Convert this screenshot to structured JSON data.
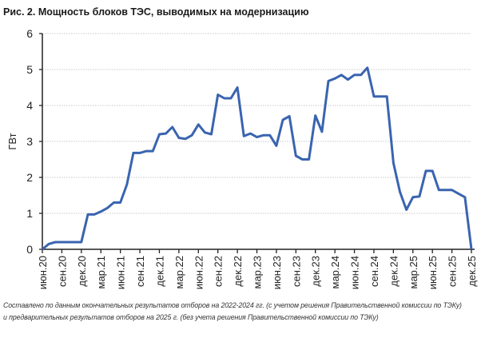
{
  "chart_data": {
    "type": "line",
    "title": "Рис. 2. Мощность блоков ТЭС, выводимых на модернизацию",
    "xlabel": "",
    "ylabel": "ГВт",
    "ylim": [
      0,
      6
    ],
    "yticks": [
      "0",
      "1",
      "2",
      "3",
      "4",
      "5",
      "6"
    ],
    "grid": true,
    "x_tick_labels": [
      "июн.20",
      "сен.20",
      "дек.20",
      "мар.21",
      "июн.21",
      "сен.21",
      "дек.21",
      "мар.22",
      "июн.22",
      "сен.22",
      "дек.22",
      "мар.23",
      "июн.23",
      "сен.23",
      "дек.23",
      "мар.24",
      "июн.24",
      "сен.24",
      "дек.24",
      "мар.25",
      "июн.25",
      "сен.25",
      "дек.25"
    ],
    "x_range": [
      "июн.20",
      "дек.25"
    ],
    "x_frequency": "monthly",
    "series": [
      {
        "color": "#3a64b0",
        "values": [
          0,
          0.15,
          0.2,
          0.2,
          0.2,
          0.2,
          0.2,
          0.97,
          0.97,
          1.05,
          1.15,
          1.3,
          1.3,
          1.8,
          2.68,
          2.68,
          2.73,
          2.73,
          3.2,
          3.22,
          3.4,
          3.1,
          3.07,
          3.17,
          3.47,
          3.25,
          3.2,
          4.3,
          4.2,
          4.2,
          4.5,
          3.15,
          3.22,
          3.12,
          3.17,
          3.17,
          2.88,
          3.6,
          3.7,
          2.6,
          2.5,
          2.5,
          3.72,
          3.27,
          4.68,
          4.75,
          4.85,
          4.72,
          4.85,
          4.85,
          5.05,
          4.25,
          4.25,
          4.25,
          2.4,
          1.6,
          1.1,
          1.45,
          1.47,
          2.18,
          2.18,
          1.65,
          1.65,
          1.65,
          1.55,
          1.45,
          0
        ]
      }
    ]
  },
  "notes": [
    "Составлено по данным окончательных результатов отборов на 2022-2024 гг. (с учетом решения Правительственной комиссии по ТЭКу)",
    "и предварительных результатов отборов на 2025 г. (без учета решения Правительственной комиссии по ТЭКу)"
  ]
}
